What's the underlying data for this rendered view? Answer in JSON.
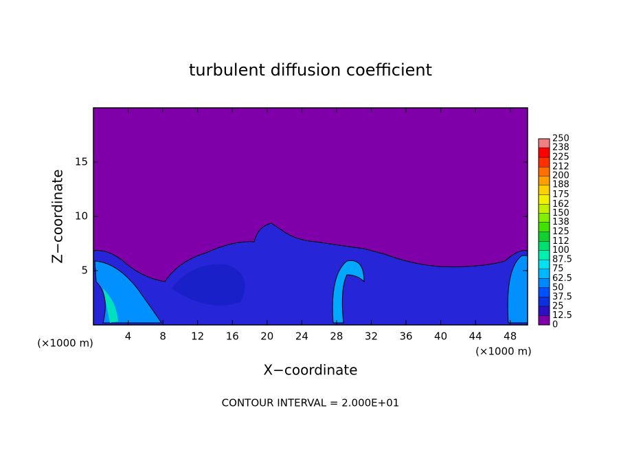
{
  "chart_data": {
    "type": "contour",
    "title": "turbulent diffusion coefficient",
    "x_label": "X−coordinate",
    "y_label": "Z−coordinate",
    "x_unit_left": "(×1000 m)",
    "x_unit_right": "(×1000 m)",
    "footer": "CONTOUR INTERVAL = 2.000E+01",
    "xlim": [
      0,
      50
    ],
    "xticks": [
      4,
      8,
      12,
      16,
      20,
      24,
      28,
      32,
      36,
      40,
      44,
      48
    ],
    "ylim": [
      0,
      20
    ],
    "yticks": [
      5,
      10,
      15
    ],
    "background_color": "#7f00a8",
    "colorbar": {
      "ticks": [
        0,
        12.5,
        25,
        37.5,
        50,
        62.5,
        75,
        87.5,
        100,
        112,
        125,
        138,
        150,
        162,
        175,
        188,
        200,
        212,
        225,
        238,
        250
      ],
      "colors": [
        "#7f00a8",
        "#2a10c0",
        "#0a30e0",
        "#0050ff",
        "#0088ff",
        "#00b8ff",
        "#00e0f0",
        "#00f0b0",
        "#00e070",
        "#10d030",
        "#40e000",
        "#80f000",
        "#c0f000",
        "#f0f000",
        "#ffd000",
        "#ffa000",
        "#ff7000",
        "#ff3000",
        "#ff0000",
        "#f08080"
      ]
    }
  }
}
